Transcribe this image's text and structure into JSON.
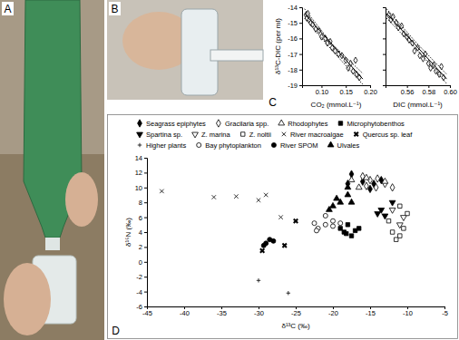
{
  "panels": {
    "labels": [
      "A",
      "B",
      "C",
      "D"
    ]
  },
  "chart_data": [
    {
      "type": "scatter",
      "x_label": "CO₂ (mmol.L⁻¹)",
      "y_label": "δ¹³C-DIC (per ml)",
      "xlim": [
        0.06,
        0.2
      ],
      "ylim": [
        -19,
        -14
      ],
      "xticks": [
        {
          "value": 0.1,
          "label": "0.10"
        },
        0.15,
        {
          "value": 0.2,
          "label": "0.20"
        }
      ],
      "yticks": [
        -19,
        -18,
        -17,
        -16,
        -15,
        -14
      ],
      "series": [
        {
          "color": "#000000",
          "marker": "diamond-open",
          "x": [
            0.068,
            0.07,
            0.072,
            0.075,
            0.078,
            0.082,
            0.088,
            0.095,
            0.1,
            0.108,
            0.112,
            0.118,
            0.122,
            0.128,
            0.135,
            0.142,
            0.15,
            0.155,
            0.16,
            0.165,
            0.17,
            0.172,
            0.178
          ],
          "values": [
            -14.5,
            -14.7,
            -14.4,
            -14.8,
            -15.0,
            -15.1,
            -15.4,
            -15.5,
            -15.9,
            -16.0,
            -16.3,
            -16.2,
            -16.6,
            -16.8,
            -17.0,
            -17.1,
            -17.4,
            -17.9,
            -17.6,
            -18.1,
            -17.4,
            -18.3,
            -18.5
          ]
        },
        {
          "type": "line",
          "color": "#000000",
          "line_style": "solid",
          "x": [
            0.065,
            0.185
          ],
          "values": [
            -14.4,
            -18.6
          ]
        },
        {
          "type": "line",
          "color": "#000000",
          "line_style": "dotted",
          "x": [
            0.065,
            0.12,
            0.185
          ],
          "values": [
            -14.1,
            -16.3,
            -18.25
          ]
        },
        {
          "type": "line",
          "color": "#000000",
          "line_style": "dotted",
          "x": [
            0.065,
            0.12,
            0.185
          ],
          "values": [
            -14.7,
            -16.7,
            -18.95
          ]
        }
      ]
    },
    {
      "type": "scatter",
      "x_label": "DIC (mmol.L⁻¹)",
      "tick_labels": "x",
      "xlim": [
        0.54,
        0.6
      ],
      "ylim": [
        -19,
        -14
      ],
      "xticks": [
        0.56,
        0.58,
        {
          "value": 0.6,
          "label": "0.60"
        }
      ],
      "yticks": [
        -19,
        -18,
        -17,
        -16,
        -15,
        -14
      ],
      "series": [
        {
          "color": "#000000",
          "marker": "diamond-open",
          "x": [
            0.543,
            0.545,
            0.547,
            0.55,
            0.552,
            0.555,
            0.557,
            0.56,
            0.562,
            0.565,
            0.567,
            0.57,
            0.572,
            0.575,
            0.577,
            0.58,
            0.582,
            0.585,
            0.587,
            0.59,
            0.592,
            0.594
          ],
          "values": [
            -14.5,
            -14.8,
            -14.6,
            -15.0,
            -15.3,
            -15.2,
            -15.7,
            -15.9,
            -16.1,
            -16.3,
            -16.8,
            -16.6,
            -17.1,
            -17.3,
            -17.0,
            -17.6,
            -17.9,
            -17.7,
            -18.1,
            -18.3,
            -17.8,
            -18.5
          ]
        },
        {
          "type": "line",
          "color": "#000000",
          "line_style": "solid",
          "x": [
            0.541,
            0.597
          ],
          "values": [
            -14.4,
            -18.6
          ]
        },
        {
          "type": "line",
          "color": "#000000",
          "line_style": "dotted",
          "x": [
            0.541,
            0.569,
            0.597
          ],
          "values": [
            -14.1,
            -16.3,
            -18.3
          ]
        },
        {
          "type": "line",
          "color": "#000000",
          "line_style": "dotted",
          "x": [
            0.541,
            0.569,
            0.597
          ],
          "values": [
            -14.7,
            -16.7,
            -18.9
          ]
        }
      ]
    },
    {
      "type": "scatter",
      "x_label": "δ¹³C (‰)",
      "y_label": "δ¹⁵N (‰)",
      "legend": "top",
      "xlim": [
        -45,
        -5
      ],
      "ylim": [
        -6,
        14
      ],
      "xticks": [
        -45,
        -40,
        -35,
        -30,
        -25,
        -20,
        -15,
        -10,
        -5
      ],
      "yticks": [
        -6,
        -4,
        -2,
        0,
        2,
        4,
        6,
        8,
        10,
        12,
        14
      ],
      "series": [
        {
          "name": "Seagrass epiphytes",
          "color": "#000000",
          "marker": "diamond",
          "x": [
            -17.5,
            -18,
            -16,
            -13.5,
            -15,
            -14.5
          ],
          "values": [
            11.8,
            10.5,
            10.8,
            11,
            9.8,
            10.5
          ]
        },
        {
          "name": "Gracilaria spp.",
          "color": "#000000",
          "marker": "diamond-open",
          "x": [
            -16,
            -15,
            -14,
            -13,
            -14.2,
            -15.5,
            -12
          ],
          "values": [
            11.5,
            11,
            11.2,
            10.5,
            10,
            10.2,
            10
          ]
        },
        {
          "name": "Rhodophytes",
          "color": "#000000",
          "marker": "triangle-open",
          "x": [
            -17.5,
            -16.5,
            -15.5,
            -13
          ],
          "values": [
            11,
            10,
            11.3,
            10.8
          ]
        },
        {
          "name": "Microphytobenthos",
          "color": "#000000",
          "marker": "square",
          "x": [
            -19,
            -18.5,
            -18,
            -17.5,
            -17,
            -16.5,
            -18.2
          ],
          "values": [
            4.5,
            4,
            5,
            3.5,
            4.2,
            4.5,
            3.8
          ]
        },
        {
          "name": "Spartina sp.",
          "color": "#000000",
          "marker": "triangle-down",
          "x": [
            -14,
            -13.5,
            -13,
            -12
          ],
          "values": [
            6.5,
            7,
            6.2,
            8
          ]
        },
        {
          "name": "Z. marina",
          "color": "#000000",
          "marker": "triangle-down-open",
          "x": [
            -11,
            -12,
            -10.5
          ],
          "values": [
            5,
            7,
            6
          ]
        },
        {
          "name": "Z. noltii",
          "color": "#000000",
          "marker": "square-open",
          "x": [
            -12,
            -11,
            -10.5,
            -11.5,
            -10,
            -12.5,
            -11
          ],
          "values": [
            4,
            3.5,
            4.5,
            3,
            6.5,
            5.5,
            7.5
          ]
        },
        {
          "name": "River macroalgae",
          "color": "#000000",
          "marker": "x",
          "x": [
            -43,
            -36,
            -33,
            -30,
            -29,
            -27
          ],
          "values": [
            9.5,
            8.7,
            8.8,
            8.3,
            9,
            6
          ]
        },
        {
          "name": "Quercus sp. leaf",
          "color": "#000000",
          "marker": "x-bold",
          "x": [
            -29.5,
            -26.5,
            -25
          ],
          "values": [
            1.5,
            2.2,
            5.5
          ]
        },
        {
          "name": "Higher plants",
          "color": "#000000",
          "marker": "plus",
          "x": [
            -30,
            -26
          ],
          "values": [
            -2.5,
            -4.2
          ]
        },
        {
          "name": "Bay phytoplankton",
          "color": "#000000",
          "marker": "circle-open",
          "x": [
            -22,
            -21,
            -22.5,
            -20,
            -19,
            -21,
            -20,
            -22.2
          ],
          "values": [
            4.5,
            5,
            5.2,
            4.8,
            5.2,
            6.2,
            5.5,
            4.2
          ]
        },
        {
          "name": "River SPOM",
          "color": "#000000",
          "marker": "circle",
          "x": [
            -29,
            -28.5,
            -28,
            -29.3
          ],
          "values": [
            2.5,
            3,
            2.8,
            2.2
          ]
        },
        {
          "name": "Ulvales",
          "color": "#000000",
          "marker": "triangle",
          "x": [
            -20,
            -19,
            -18,
            -17.5,
            -19.5,
            -20.5,
            -18
          ],
          "values": [
            7.5,
            8,
            9,
            8,
            8.5,
            7,
            10
          ]
        }
      ]
    }
  ]
}
